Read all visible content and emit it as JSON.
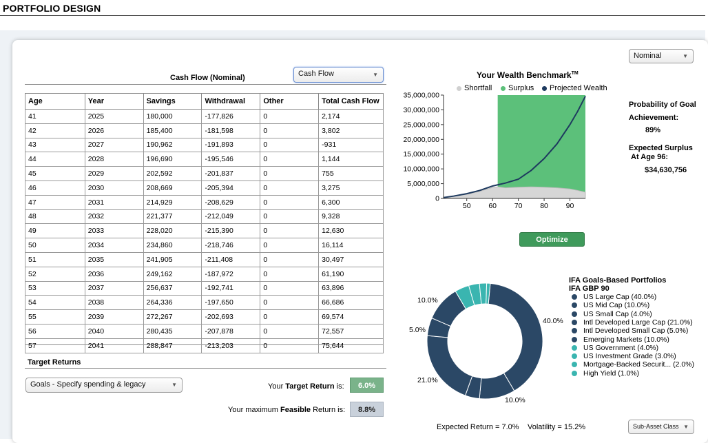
{
  "header": {
    "title": "PORTFOLIO DESIGN"
  },
  "nominal_select": {
    "value": "Nominal"
  },
  "cashflow": {
    "title": "Cash Flow (Nominal)",
    "view_select": "Cash Flow",
    "columns": [
      "Age",
      "Year",
      "Savings",
      "Withdrawal",
      "Other",
      "Total Cash Flow"
    ],
    "rows": [
      [
        "41",
        "2025",
        "180,000",
        "-177,826",
        "0",
        "2,174"
      ],
      [
        "42",
        "2026",
        "185,400",
        "-181,598",
        "0",
        "3,802"
      ],
      [
        "43",
        "2027",
        "190,962",
        "-191,893",
        "0",
        "-931"
      ],
      [
        "44",
        "2028",
        "196,690",
        "-195,546",
        "0",
        "1,144"
      ],
      [
        "45",
        "2029",
        "202,592",
        "-201,837",
        "0",
        "755"
      ],
      [
        "46",
        "2030",
        "208,669",
        "-205,394",
        "0",
        "3,275"
      ],
      [
        "47",
        "2031",
        "214,929",
        "-208,629",
        "0",
        "6,300"
      ],
      [
        "48",
        "2032",
        "221,377",
        "-212,049",
        "0",
        "9,328"
      ],
      [
        "49",
        "2033",
        "228,020",
        "-215,390",
        "0",
        "12,630"
      ],
      [
        "50",
        "2034",
        "234,860",
        "-218,746",
        "0",
        "16,114"
      ],
      [
        "51",
        "2035",
        "241,905",
        "-211,408",
        "0",
        "30,497"
      ],
      [
        "52",
        "2036",
        "249,162",
        "-187,972",
        "0",
        "61,190"
      ],
      [
        "53",
        "2037",
        "256,637",
        "-192,741",
        "0",
        "63,896"
      ],
      [
        "54",
        "2038",
        "264,336",
        "-197,650",
        "0",
        "66,686"
      ],
      [
        "55",
        "2039",
        "272,267",
        "-202,693",
        "0",
        "69,574"
      ],
      [
        "56",
        "2040",
        "280,435",
        "-207,878",
        "0",
        "72,557"
      ],
      [
        "57",
        "2041",
        "288,847",
        "-213,203",
        "0",
        "75,644"
      ]
    ]
  },
  "target_returns": {
    "title": "Target Returns",
    "goal_select": "Goals - Specify spending & legacy",
    "target_label_pre": "Your ",
    "target_label_bold": "Target Return",
    "target_label_post": " is:",
    "target_value": "6.0%",
    "feasible_label_pre": "Your maximum ",
    "feasible_label_bold": "Feasible",
    "feasible_label_post": " Return is:",
    "feasible_value": "8.8%"
  },
  "wealth_chart": {
    "title": "Your Wealth Benchmark",
    "title_sup": "TM",
    "legend": [
      {
        "label": "Shortfall",
        "color": "#d0d0d0"
      },
      {
        "label": "Surplus",
        "color": "#5cc07a"
      },
      {
        "label": "Projected Wealth",
        "color": "#1e3a5f"
      }
    ],
    "y_ticks": [
      "35,000,000",
      "30,000,000",
      "25,000,000",
      "20,000,000",
      "15,000,000",
      "10,000,000",
      "5,000,000",
      "0"
    ],
    "x_ticks": [
      "50",
      "60",
      "70",
      "80",
      "90"
    ]
  },
  "chart_data": {
    "type": "area",
    "title": "Your Wealth Benchmark",
    "xlim": [
      41,
      96
    ],
    "ylim": [
      0,
      35000000
    ],
    "grid": false,
    "legend_position": "top",
    "surplus_start_age": 62,
    "series": [
      {
        "name": "Projected Wealth",
        "color": "#1e3a5f",
        "x": [
          41,
          45,
          50,
          55,
          60,
          62,
          65,
          70,
          75,
          80,
          85,
          90,
          93,
          96
        ],
        "values": [
          300000,
          800000,
          1600000,
          2700000,
          4200000,
          4600000,
          5200000,
          6500000,
          9500000,
          13500000,
          18500000,
          25000000,
          29500000,
          34600000
        ]
      },
      {
        "name": "Shortfall",
        "color": "#d0d0d0",
        "x": [
          41,
          45,
          50,
          55,
          60,
          62,
          65,
          70,
          75,
          80,
          85,
          90,
          93,
          96
        ],
        "values": [
          300000,
          700000,
          1400000,
          2400000,
          3700000,
          3900000,
          3600000,
          3800000,
          3900000,
          3800000,
          3600000,
          3200000,
          2700000,
          2100000
        ]
      }
    ]
  },
  "probability": {
    "label_line1": "Probability of Goal",
    "label_line2": "Achievement:",
    "value": "89%",
    "surplus_line1": "Expected Surplus",
    "surplus_line2": "At Age 96:",
    "surplus_value": "$34,630,756"
  },
  "optimize_label": "Optimize",
  "portfolio": {
    "title_line1": "IFA Goals-Based Portfolios",
    "title_line2": "IFA GBP 90",
    "allocations": [
      {
        "label": "US Large Cap (40.0%)",
        "pct": 40.0,
        "color": "#2b4866"
      },
      {
        "label": "US Mid Cap (10.0%)",
        "pct": 10.0,
        "color": "#2b4866"
      },
      {
        "label": "US Small Cap (4.0%)",
        "pct": 4.0,
        "color": "#2b4866"
      },
      {
        "label": "Intl Developed Large Cap (21.0%)",
        "pct": 21.0,
        "color": "#2b4866"
      },
      {
        "label": "Intl Developed Small Cap (5.0%)",
        "pct": 5.0,
        "color": "#2b4866"
      },
      {
        "label": "Emerging Markets (10.0%)",
        "pct": 10.0,
        "color": "#2b4866"
      },
      {
        "label": "US Government (4.0%)",
        "pct": 4.0,
        "color": "#3ab5b0"
      },
      {
        "label": "US Investment Grade (3.0%)",
        "pct": 3.0,
        "color": "#3ab5b0"
      },
      {
        "label": "Mortgage-Backed Securit... (2.0%)",
        "pct": 2.0,
        "color": "#3ab5b0"
      },
      {
        "label": "High Yield (1.0%)",
        "pct": 1.0,
        "color": "#3ab5b0"
      }
    ],
    "donut_labels": [
      "40.0%",
      "10.0%",
      "21.0%",
      "5.0%",
      "10.0%"
    ],
    "expected_return": "Expected Return = 7.0%",
    "volatility": "Volatility = 15.2%",
    "asset_class_select": "Sub-Asset Class"
  }
}
